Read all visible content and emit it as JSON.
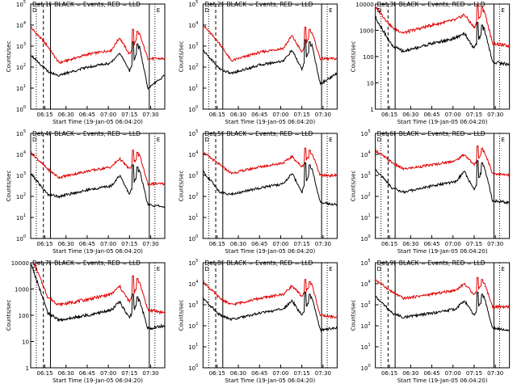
{
  "colors": {
    "events": "#000000",
    "lld": "#e00000",
    "axis": "#000000",
    "background": "#ffffff"
  },
  "chart_data": [
    {
      "type": "line",
      "scale": "log",
      "ytick_style": "exp",
      "title_prefix": "Det 1f",
      "title_suffix": "BLACK = Events, RED = LLD",
      "ylabel": "Counts/sec",
      "xlabel": "Start Time (19-Jan-05 06:04:20)",
      "xticks": [
        "06:15",
        "06:30",
        "06:45",
        "07:00",
        "07:15",
        "07:30"
      ],
      "ytick_exps": [
        "0",
        "1",
        "2",
        "3",
        "4",
        "5"
      ],
      "ylim_exp": [
        0,
        5
      ],
      "corner_labels": [
        "D",
        "E"
      ],
      "lld_levels": [
        3.9,
        3.0,
        2.2,
        2.6,
        2.8,
        3.4,
        2.6,
        3.6,
        2.4,
        2.4
      ],
      "event_levels": [
        2.6,
        1.8,
        1.6,
        2.0,
        2.2,
        2.7,
        1.8,
        3.0,
        1.0,
        1.6
      ]
    },
    {
      "type": "line",
      "scale": "log",
      "ytick_style": "exp",
      "title_prefix": "Det 2f",
      "title_suffix": "BLACK = Events, RED = LLD",
      "ylabel": "Counts/sec",
      "xlabel": "Start Time (19-Jan-05 06:04:20)",
      "xticks": [
        "06:15",
        "06:30",
        "06:45",
        "07:00",
        "07:15",
        "07:30"
      ],
      "ytick_exps": [
        "0",
        "1",
        "2",
        "3",
        "4",
        "5"
      ],
      "ylim_exp": [
        0,
        5
      ],
      "corner_labels": [
        "D",
        "E"
      ],
      "lld_levels": [
        4.0,
        3.1,
        2.3,
        2.7,
        2.9,
        3.5,
        2.7,
        3.7,
        2.4,
        2.4
      ],
      "event_levels": [
        2.8,
        1.9,
        1.7,
        2.1,
        2.3,
        2.8,
        1.9,
        3.1,
        1.2,
        1.7
      ]
    },
    {
      "type": "line",
      "scale": "log",
      "ytick_style": "decimal",
      "title_prefix": "Det 3f",
      "title_suffix": "BLACK = Events, RED = LLD",
      "ylabel": "Counts/sec",
      "xlabel": "Start Time (19-Jan-05 06:04:20)",
      "xticks": [
        "06:15",
        "06:30",
        "06:45",
        "07:00",
        "07:15",
        "07:30"
      ],
      "ytick_labels": [
        "1",
        "10",
        "100",
        "1000",
        "10000"
      ],
      "ylim_exp": [
        0,
        4
      ],
      "corner_labels": [
        "D",
        "E"
      ],
      "lld_levels": [
        3.9,
        3.1,
        2.9,
        3.2,
        3.4,
        3.6,
        3.1,
        3.8,
        2.5,
        2.4
      ],
      "event_levels": [
        3.5,
        2.4,
        2.2,
        2.5,
        2.7,
        2.9,
        2.3,
        3.1,
        1.8,
        1.7
      ]
    },
    {
      "type": "line",
      "scale": "log",
      "ytick_style": "exp",
      "title_prefix": "Det 4f",
      "title_suffix": "BLACK = Events, RED = LLD",
      "ylabel": "Counts/sec",
      "xlabel": "Start Time (19-Jan-05 06:04:20)",
      "xticks": [
        "06:15",
        "06:30",
        "06:45",
        "07:00",
        "07:15",
        "07:30"
      ],
      "ytick_exps": [
        "0",
        "1",
        "2",
        "3",
        "4",
        "5"
      ],
      "ylim_exp": [
        0,
        5
      ],
      "corner_labels": [
        "D",
        "E"
      ],
      "lld_levels": [
        4.1,
        3.3,
        2.9,
        3.2,
        3.4,
        3.8,
        3.3,
        4.0,
        2.6,
        2.6
      ],
      "event_levels": [
        3.1,
        2.1,
        2.0,
        2.3,
        2.5,
        3.0,
        2.1,
        3.3,
        1.6,
        1.5
      ]
    },
    {
      "type": "line",
      "scale": "log",
      "ytick_style": "exp",
      "title_prefix": "Det 5f",
      "title_suffix": "BLACK = Events, RED = LLD",
      "ylabel": "Counts/sec",
      "xlabel": "Start Time (19-Jan-05 06:04:20)",
      "xticks": [
        "06:15",
        "06:30",
        "06:45",
        "07:00",
        "07:15",
        "07:30"
      ],
      "ytick_exps": [
        "0",
        "1",
        "2",
        "3",
        "4",
        "5"
      ],
      "ylim_exp": [
        0,
        5
      ],
      "corner_labels": [
        "D",
        "E"
      ],
      "lld_levels": [
        4.1,
        3.5,
        3.1,
        3.4,
        3.6,
        3.9,
        3.4,
        4.1,
        3.0,
        3.0
      ],
      "event_levels": [
        3.2,
        2.2,
        2.1,
        2.4,
        2.6,
        3.1,
        2.2,
        3.4,
        1.7,
        1.6
      ]
    },
    {
      "type": "line",
      "scale": "log",
      "ytick_style": "exp",
      "title_prefix": "Det 6f",
      "title_suffix": "BLACK = Events, RED = LLD",
      "ylabel": "Counts/sec",
      "xlabel": "Start Time (19-Jan-05 06:04:20)",
      "xticks": [
        "06:15",
        "06:30",
        "06:45",
        "07:00",
        "07:15",
        "07:30"
      ],
      "ytick_exps": [
        "0",
        "1",
        "2",
        "3",
        "4",
        "5"
      ],
      "ylim_exp": [
        0,
        5
      ],
      "corner_labels": [
        "D",
        "E"
      ],
      "lld_levels": [
        4.2,
        3.6,
        3.3,
        3.5,
        3.7,
        4.0,
        3.5,
        4.2,
        3.1,
        3.0
      ],
      "event_levels": [
        3.3,
        2.4,
        2.2,
        2.5,
        2.7,
        3.2,
        2.3,
        3.5,
        1.8,
        1.7
      ]
    },
    {
      "type": "line",
      "scale": "log",
      "ytick_style": "decimal",
      "title_prefix": "Det 7f",
      "title_suffix": "BLACK = Events, RED = LLD",
      "ylabel": "Counts/sec",
      "xlabel": "Start Time (19-Jan-05 06:04:20)",
      "xticks": [
        "06:15",
        "06:30",
        "06:45",
        "07:00",
        "07:15",
        "07:30"
      ],
      "ytick_labels": [
        "1",
        "10",
        "100",
        "1000",
        "10000"
      ],
      "ylim_exp": [
        0,
        4
      ],
      "corner_labels": [
        "D",
        "E"
      ],
      "lld_levels": [
        4.3,
        2.7,
        2.4,
        2.6,
        2.8,
        3.1,
        2.5,
        3.3,
        2.2,
        2.1
      ],
      "event_levels": [
        4.0,
        2.1,
        1.8,
        2.0,
        2.2,
        2.5,
        1.9,
        2.6,
        1.5,
        1.6
      ]
    },
    {
      "type": "line",
      "scale": "log",
      "ytick_style": "exp",
      "title_prefix": "Det 8f",
      "title_suffix": "BLACK = Events, RED = LLD",
      "ylabel": "Counts/sec",
      "xlabel": "Start Time (19-Jan-05 06:04:20)",
      "xticks": [
        "06:15",
        "06:30",
        "06:45",
        "07:00",
        "07:15",
        "07:30"
      ],
      "ytick_exps": [
        "0",
        "1",
        "2",
        "3",
        "4",
        "5"
      ],
      "ylim_exp": [
        0,
        5
      ],
      "corner_labels": [
        "D",
        "E"
      ],
      "lld_levels": [
        4.1,
        3.3,
        3.0,
        3.3,
        3.5,
        3.9,
        3.4,
        4.0,
        2.5,
        2.4
      ],
      "event_levels": [
        3.3,
        2.5,
        2.3,
        2.6,
        2.8,
        3.2,
        2.5,
        3.4,
        1.8,
        1.9
      ]
    },
    {
      "type": "line",
      "scale": "log",
      "ytick_style": "exp",
      "title_prefix": "Det 9f",
      "title_suffix": "BLACK = Events, RED = LLD",
      "ylabel": "Counts/sec",
      "xlabel": "Start Time (19-Jan-05 06:04:20)",
      "xticks": [
        "06:15",
        "06:30",
        "06:45",
        "07:00",
        "07:15",
        "07:30"
      ],
      "ytick_exps": [
        "0",
        "1",
        "2",
        "3",
        "4",
        "5"
      ],
      "ylim_exp": [
        0,
        5
      ],
      "corner_labels": [
        "D",
        "E"
      ],
      "lld_levels": [
        4.2,
        3.6,
        3.3,
        3.5,
        3.7,
        4.0,
        3.5,
        4.1,
        2.9,
        2.9
      ],
      "event_levels": [
        3.4,
        2.6,
        2.4,
        2.6,
        2.8,
        3.2,
        2.5,
        3.4,
        1.9,
        1.8
      ]
    }
  ]
}
